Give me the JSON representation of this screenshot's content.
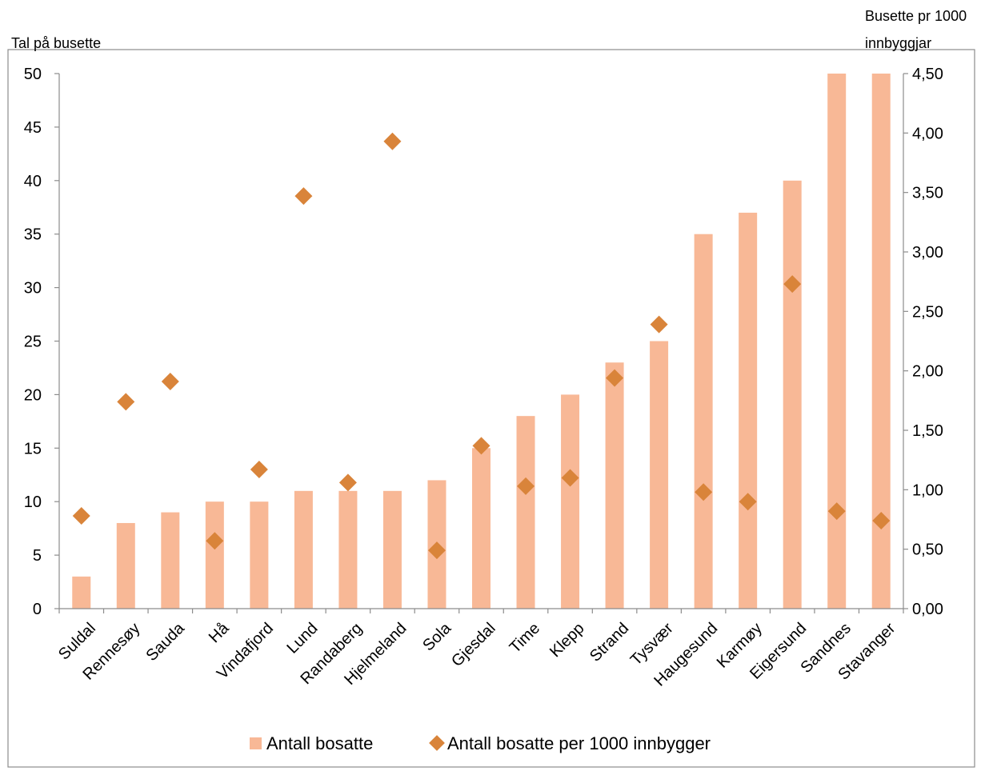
{
  "chart_data": {
    "type": "bar",
    "y_left_title": "Tal på busette",
    "y_right_title_lines": [
      "Busette pr 1000",
      "innbyggjar"
    ],
    "categories": [
      "Suldal",
      "Rennesøy",
      "Sauda",
      "Hå",
      "Vindafjord",
      "Lund",
      "Randaberg",
      "Hjelmeland",
      "Sola",
      "Gjesdal",
      "Time",
      "Klepp",
      "Strand",
      "Tysvær",
      "Haugesund",
      "Karmøy",
      "Eigersund",
      "Sandnes",
      "Stavanger"
    ],
    "series": [
      {
        "name": "Antall bosatte",
        "type": "bar",
        "axis": "left",
        "color": "#f8b896",
        "values": [
          3,
          8,
          9,
          10,
          10,
          11,
          11,
          11,
          12,
          15,
          18,
          20,
          23,
          25,
          35,
          37,
          40,
          50,
          50
        ]
      },
      {
        "name": "Antall bosatte per 1000 innbygger",
        "type": "scatter",
        "axis": "right",
        "color": "#d9843a",
        "values": [
          0.78,
          1.74,
          1.91,
          0.57,
          1.17,
          3.47,
          1.06,
          3.93,
          0.49,
          1.37,
          1.03,
          1.1,
          1.94,
          2.39,
          0.98,
          0.9,
          2.73,
          0.82,
          0.74
        ]
      }
    ],
    "y_left": {
      "min": 0,
      "max": 50,
      "step": 5,
      "ticks": [
        "0",
        "5",
        "10",
        "15",
        "20",
        "25",
        "30",
        "35",
        "40",
        "45",
        "50"
      ]
    },
    "y_right": {
      "min": 0,
      "max": 4.5,
      "step": 0.5,
      "ticks": [
        "0,00",
        "0,50",
        "1,00",
        "1,50",
        "2,00",
        "2,50",
        "3,00",
        "3,50",
        "4,00",
        "4,50"
      ]
    },
    "legend_placement": "bottom",
    "grid": false
  }
}
